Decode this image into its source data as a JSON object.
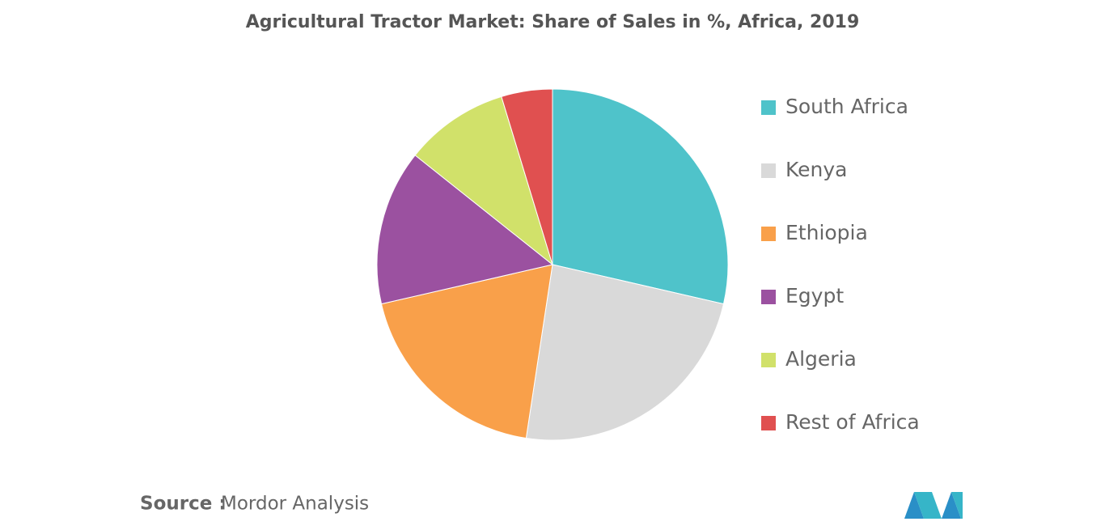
{
  "chart_data": {
    "type": "pie",
    "title": "Agricultural Tractor Market: Share of Sales in %, Africa, 2019",
    "categories": [
      "South Africa",
      "Kenya",
      "Ethiopia",
      "Egypt",
      "Algeria",
      "Rest of Africa"
    ],
    "values": [
      28.6,
      23.8,
      19.0,
      14.3,
      9.6,
      4.7
    ],
    "colors": [
      "#4fc3ca",
      "#d9d9d9",
      "#f9a04a",
      "#9b51a0",
      "#d1e16a",
      "#e05050"
    ],
    "legend": "right",
    "source_label": "Source :",
    "source": "Mordor Analysis"
  }
}
